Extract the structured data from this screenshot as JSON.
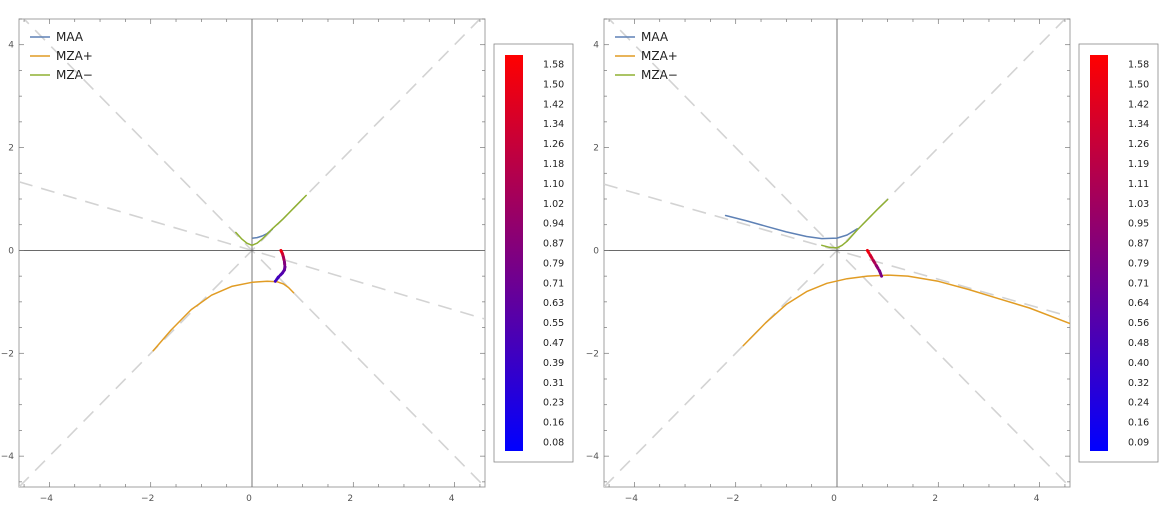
{
  "chart_data": [
    {
      "type": "line",
      "xlim": [
        -4.6,
        4.6
      ],
      "ylim": [
        -4.6,
        4.5
      ],
      "xticks": [
        -4,
        -2,
        0,
        2,
        4
      ],
      "yticks": [
        -4,
        -2,
        0,
        2,
        4
      ],
      "grid": false,
      "legend": {
        "placement": "top-left"
      },
      "reference_lines": [
        {
          "slope": 1,
          "style": "dashed",
          "color": "#d3d3d3"
        },
        {
          "slope": -1,
          "style": "dashed",
          "color": "#d3d3d3"
        },
        {
          "slope": -0.29,
          "style": "dashed",
          "color": "#d3d3d3"
        }
      ],
      "series": [
        {
          "name": "MAA",
          "color": "#5e81b5",
          "x": [
            0.02,
            0.1,
            0.2,
            0.3,
            0.4
          ],
          "y": [
            0.24,
            0.25,
            0.28,
            0.33,
            0.41
          ]
        },
        {
          "name": "MZA+",
          "color": "#e19c24",
          "x": [
            -1.95,
            -1.6,
            -1.2,
            -0.8,
            -0.4,
            0.0,
            0.3,
            0.5,
            0.62,
            0.72,
            0.82
          ],
          "y": [
            -1.95,
            -1.55,
            -1.15,
            -0.87,
            -0.7,
            -0.62,
            -0.6,
            -0.61,
            -0.65,
            -0.72,
            -0.82
          ]
        },
        {
          "name": "MZA−",
          "color": "#8fb032",
          "x": [
            -0.32,
            -0.2,
            -0.1,
            0.0,
            0.1,
            0.2,
            0.4,
            0.6,
            0.8,
            1.07
          ],
          "y": [
            0.35,
            0.22,
            0.14,
            0.1,
            0.14,
            0.22,
            0.42,
            0.6,
            0.8,
            1.07
          ]
        }
      ],
      "colored_path": {
        "x": [
          0.57,
          0.6,
          0.62,
          0.64,
          0.65,
          0.64,
          0.6,
          0.52,
          0.46
        ],
        "y": [
          0.0,
          -0.06,
          -0.13,
          -0.22,
          -0.32,
          -0.38,
          -0.44,
          -0.52,
          -0.6
        ],
        "color_values": [
          1.58,
          1.4,
          1.2,
          0.95,
          0.75,
          0.68,
          0.6,
          0.5,
          0.4
        ]
      },
      "colorbar": {
        "labels": [
          "1.58",
          "1.50",
          "1.42",
          "1.34",
          "1.26",
          "1.18",
          "1.10",
          "1.02",
          "0.94",
          "0.87",
          "0.79",
          "0.71",
          "0.63",
          "0.55",
          "0.47",
          "0.39",
          "0.31",
          "0.23",
          "0.16",
          "0.08"
        ],
        "color_low": "#0000ff",
        "color_high": "#ff0000"
      }
    },
    {
      "type": "line",
      "xlim": [
        -4.6,
        4.6
      ],
      "ylim": [
        -4.6,
        4.5
      ],
      "xticks": [
        -4,
        -2,
        0,
        2,
        4
      ],
      "yticks": [
        -4,
        -2,
        0,
        2,
        4
      ],
      "grid": false,
      "legend": {
        "placement": "top-left"
      },
      "reference_lines": [
        {
          "slope": 1,
          "style": "dashed",
          "color": "#d3d3d3"
        },
        {
          "slope": -1,
          "style": "dashed",
          "color": "#d3d3d3"
        },
        {
          "slope": -0.28,
          "style": "dashed",
          "color": "#d3d3d3"
        }
      ],
      "series": [
        {
          "name": "MAA",
          "color": "#5e81b5",
          "x": [
            -2.2,
            -1.8,
            -1.4,
            -1.0,
            -0.6,
            -0.3,
            0.0,
            0.2,
            0.4
          ],
          "y": [
            0.68,
            0.58,
            0.47,
            0.36,
            0.27,
            0.23,
            0.24,
            0.3,
            0.42
          ]
        },
        {
          "name": "MZA+",
          "color": "#e19c24",
          "x": [
            -1.85,
            -1.4,
            -1.0,
            -0.6,
            -0.2,
            0.2,
            0.6,
            1.0,
            1.4,
            2.0,
            2.6,
            3.2,
            3.8,
            4.6
          ],
          "y": [
            -1.85,
            -1.4,
            -1.05,
            -0.8,
            -0.64,
            -0.55,
            -0.5,
            -0.48,
            -0.5,
            -0.6,
            -0.76,
            -0.94,
            -1.12,
            -1.42
          ]
        },
        {
          "name": "MZA−",
          "color": "#8fb032",
          "x": [
            -0.3,
            -0.15,
            0.0,
            0.1,
            0.2,
            0.4,
            0.6,
            0.8,
            1.0
          ],
          "y": [
            0.1,
            0.06,
            0.05,
            0.1,
            0.18,
            0.4,
            0.6,
            0.8,
            0.99
          ]
        }
      ],
      "colored_path": {
        "x": [
          0.6,
          0.66,
          0.72,
          0.78,
          0.84,
          0.88
        ],
        "y": [
          0.0,
          -0.1,
          -0.2,
          -0.3,
          -0.4,
          -0.5
        ],
        "color_values": [
          1.58,
          1.4,
          1.2,
          1.0,
          0.85,
          0.75
        ]
      },
      "colorbar": {
        "labels": [
          "1.58",
          "1.50",
          "1.42",
          "1.34",
          "1.26",
          "1.19",
          "1.11",
          "1.03",
          "0.95",
          "0.87",
          "0.79",
          "0.71",
          "0.64",
          "0.56",
          "0.48",
          "0.40",
          "0.32",
          "0.24",
          "0.16",
          "0.09"
        ],
        "color_low": "#0000ff",
        "color_high": "#ff0000"
      }
    }
  ]
}
